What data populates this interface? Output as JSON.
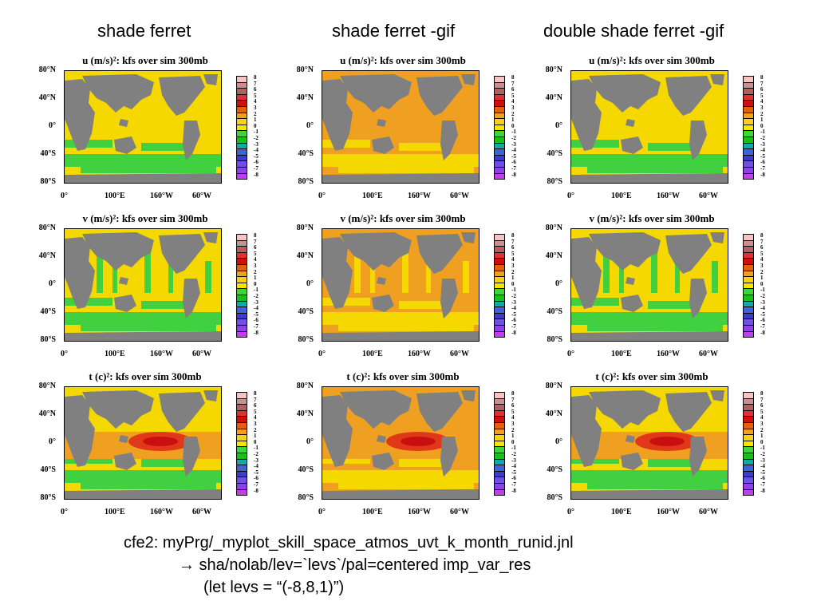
{
  "column_titles": [
    "shade ferret",
    "shade ferret -gif",
    "double shade ferret -gif"
  ],
  "panel_titles": {
    "u": "u (m/s)²: kfs over sim 300mb",
    "v": "v (m/s)²: kfs over sim 300mb",
    "t": "t (c)²: kfs over sim 300mb"
  },
  "lat_labels": [
    "80°N",
    "40°N",
    "0°",
    "40°S",
    "80°S"
  ],
  "lon_labels": [
    "0°",
    "100°E",
    "160°W",
    "60°W"
  ],
  "colorbar_labels": [
    "8",
    "7",
    "6",
    "5",
    "4",
    "3",
    "2",
    "1",
    "0",
    "-1",
    "-2",
    "-3",
    "-4",
    "-5",
    "-6",
    "-7",
    "-8"
  ],
  "colorbar_colors": [
    "#f6c3c3",
    "#c89090",
    "#b06060",
    "#e03030",
    "#cc1010",
    "#e06010",
    "#f0a020",
    "#f7d018",
    "#f5e600",
    "#3fd43f",
    "#18c018",
    "#14a8a8",
    "#3c64d8",
    "#3c3cc8",
    "#7050e0",
    "#9040e8",
    "#c040e8"
  ],
  "colors": {
    "land": "#808080",
    "ocean_yellow": "#f5d800",
    "ocean_orange": "#f0a020",
    "ocean_green": "#40d040",
    "hot": "#e03818",
    "hot2": "#c81010"
  },
  "caption": {
    "line1": "cfe2: myPrg/_myplot_skill_space_atmos_uvt_k_month_runid.jnl",
    "line2": "→ sha/nolab/lev=`levs`/pal=centered imp_var_res",
    "line3": "(let levs = “(-8,8,1)”)"
  }
}
